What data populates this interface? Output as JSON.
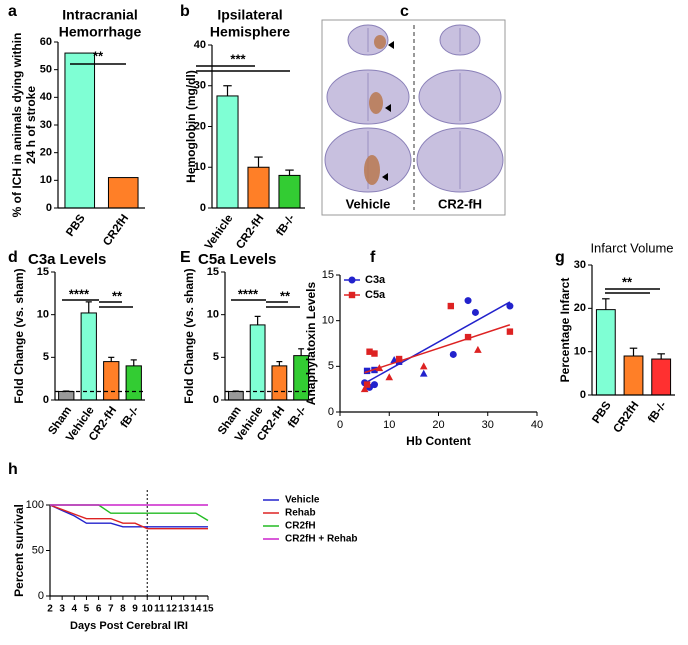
{
  "chart_data": [
    {
      "panel": "a",
      "type": "bar",
      "title": [
        "Intracranial",
        "Hemorrhage"
      ],
      "ylabel": [
        "% of ICH in animals dying within",
        "24 h of stroke"
      ],
      "categories": [
        "PBS",
        "CR2fH"
      ],
      "values": [
        56,
        11
      ],
      "colors": [
        "#7fffd4",
        "#ff7f27"
      ],
      "ylim": [
        0,
        60
      ],
      "yticks": [
        0,
        10,
        20,
        30,
        40,
        50,
        60
      ],
      "annotations": [
        "**"
      ]
    },
    {
      "panel": "b",
      "type": "bar",
      "title": [
        "Ipsilateral",
        "Hemisphere"
      ],
      "ylabel": [
        "Hemoglobin (mg/dl)"
      ],
      "categories": [
        "Vehicle",
        "CR2-fH",
        "fB-/-"
      ],
      "values": [
        27.5,
        10,
        8
      ],
      "errors": [
        2.5,
        2.5,
        1.3
      ],
      "colors": [
        "#7fffd4",
        "#ff7f27",
        "#33cc33"
      ],
      "ylim": [
        0,
        40
      ],
      "yticks": [
        0,
        10,
        20,
        30,
        40
      ],
      "annotations": [
        "***"
      ]
    },
    {
      "panel": "c",
      "type": "image",
      "labels": [
        "Vehicle",
        "CR2-fH"
      ]
    },
    {
      "panel": "d",
      "type": "bar",
      "title": [
        "C3a Levels"
      ],
      "ylabel": [
        "Fold Change (vs. sham)"
      ],
      "categories": [
        "Sham",
        "Vehicle",
        "CR2-fH",
        "fB-/-"
      ],
      "values": [
        1,
        10.2,
        4.5,
        4
      ],
      "errors": [
        0.05,
        1.3,
        0.5,
        0.7
      ],
      "colors": [
        "#999999",
        "#7fffd4",
        "#ff7f27",
        "#33cc33"
      ],
      "ylim": [
        0,
        15
      ],
      "yticks": [
        0,
        5,
        10,
        15
      ],
      "hline": 1,
      "annotations": [
        "****",
        "**"
      ]
    },
    {
      "panel": "E",
      "type": "bar",
      "title": [
        "C5a Levels"
      ],
      "ylabel": [
        "Fold Change (vs. sham)"
      ],
      "categories": [
        "Sham",
        "Vehicle",
        "CR2-fH",
        "fB-/-"
      ],
      "values": [
        1,
        8.8,
        4,
        5.2
      ],
      "errors": [
        0.05,
        1,
        0.5,
        0.8
      ],
      "colors": [
        "#999999",
        "#7fffd4",
        "#ff7f27",
        "#33cc33"
      ],
      "ylim": [
        0,
        15
      ],
      "yticks": [
        0,
        5,
        10,
        15
      ],
      "hline": 1,
      "annotations": [
        "****",
        "**"
      ]
    },
    {
      "panel": "f",
      "type": "scatter",
      "ylabel": [
        "Anaphylatoxin Levels"
      ],
      "xlabel": "Hb Content",
      "xlim": [
        0,
        40
      ],
      "ylim": [
        0,
        15
      ],
      "xticks": [
        0,
        10,
        20,
        30,
        40
      ],
      "yticks": [
        0,
        5,
        10,
        15
      ],
      "trendline": true,
      "legend": "upper left",
      "series": [
        {
          "name": "C3a",
          "color": "#2222cc",
          "x": [
            5,
            5.5,
            6,
            7,
            7,
            11,
            12,
            17,
            23,
            26,
            27.5,
            34.5
          ],
          "values": [
            3.2,
            4.5,
            2.7,
            4.6,
            3,
            5.7,
            5.5,
            4.2,
            6.3,
            12.2,
            10.9,
            11.6
          ],
          "markers": [
            "circle",
            "square",
            "circle",
            "square",
            "circle",
            "triangle",
            "square",
            "triangle",
            "circle",
            "circle",
            "circle",
            "circle"
          ]
        },
        {
          "name": "C5a",
          "color": "#dd2222",
          "x": [
            5,
            5.5,
            6,
            7,
            8,
            10,
            12,
            17,
            22.5,
            26,
            28,
            34.5
          ],
          "values": [
            2.5,
            3,
            6.6,
            6.4,
            4.8,
            3.8,
            5.8,
            5,
            11.6,
            8.2,
            6.8,
            8.8
          ],
          "markers": [
            "triangle",
            "square",
            "square",
            "square",
            "triangle",
            "triangle",
            "square",
            "triangle",
            "square",
            "square",
            "triangle",
            "square"
          ]
        }
      ]
    },
    {
      "panel": "g",
      "type": "bar",
      "title": [
        "Infarct Volume"
      ],
      "ylabel": [
        "Percentage Infarct"
      ],
      "categories": [
        "PBS",
        "CR2fH",
        "fB-/-"
      ],
      "values": [
        19.7,
        9,
        8.3
      ],
      "errors": [
        2.5,
        1.8,
        1.2
      ],
      "colors": [
        "#7fffd4",
        "#ff7f27",
        "#ff3030"
      ],
      "ylim": [
        0,
        30
      ],
      "yticks": [
        0,
        10,
        20,
        30
      ],
      "annotations": [
        "**"
      ]
    },
    {
      "panel": "h",
      "type": "line",
      "ylabel": [
        "Percent survival"
      ],
      "xlabel": "Days Post Cerebral IRI",
      "xlim": [
        2,
        15
      ],
      "ylim": [
        0,
        100
      ],
      "xticks": [
        2,
        3,
        4,
        5,
        6,
        7,
        8,
        9,
        10,
        11,
        12,
        13,
        14,
        15
      ],
      "yticks": [
        0,
        50,
        100
      ],
      "vline": 10,
      "legend": "right",
      "x": [
        2,
        3,
        4,
        5,
        6,
        7,
        8,
        9,
        10,
        11,
        12,
        13,
        14,
        15
      ],
      "series": [
        {
          "name": "Vehicle",
          "color": "#2222cc",
          "values": [
            100,
            94,
            88,
            80,
            80,
            80,
            76,
            76,
            76,
            76,
            76,
            76,
            76,
            76
          ]
        },
        {
          "name": "Rehab",
          "color": "#dd2222",
          "values": [
            100,
            95,
            90,
            85,
            85,
            85,
            80,
            80,
            74,
            74,
            74,
            74,
            74,
            74
          ]
        },
        {
          "name": "CR2fH",
          "color": "#22bb22",
          "values": [
            100,
            100,
            100,
            100,
            100,
            91,
            91,
            91,
            91,
            91,
            91,
            91,
            91,
            83
          ]
        },
        {
          "name": "CR2fH + Rehab",
          "color": "#cc22cc",
          "values": [
            100,
            100,
            100,
            100,
            100,
            100,
            100,
            100,
            100,
            100,
            100,
            100,
            100,
            100
          ]
        }
      ]
    }
  ]
}
